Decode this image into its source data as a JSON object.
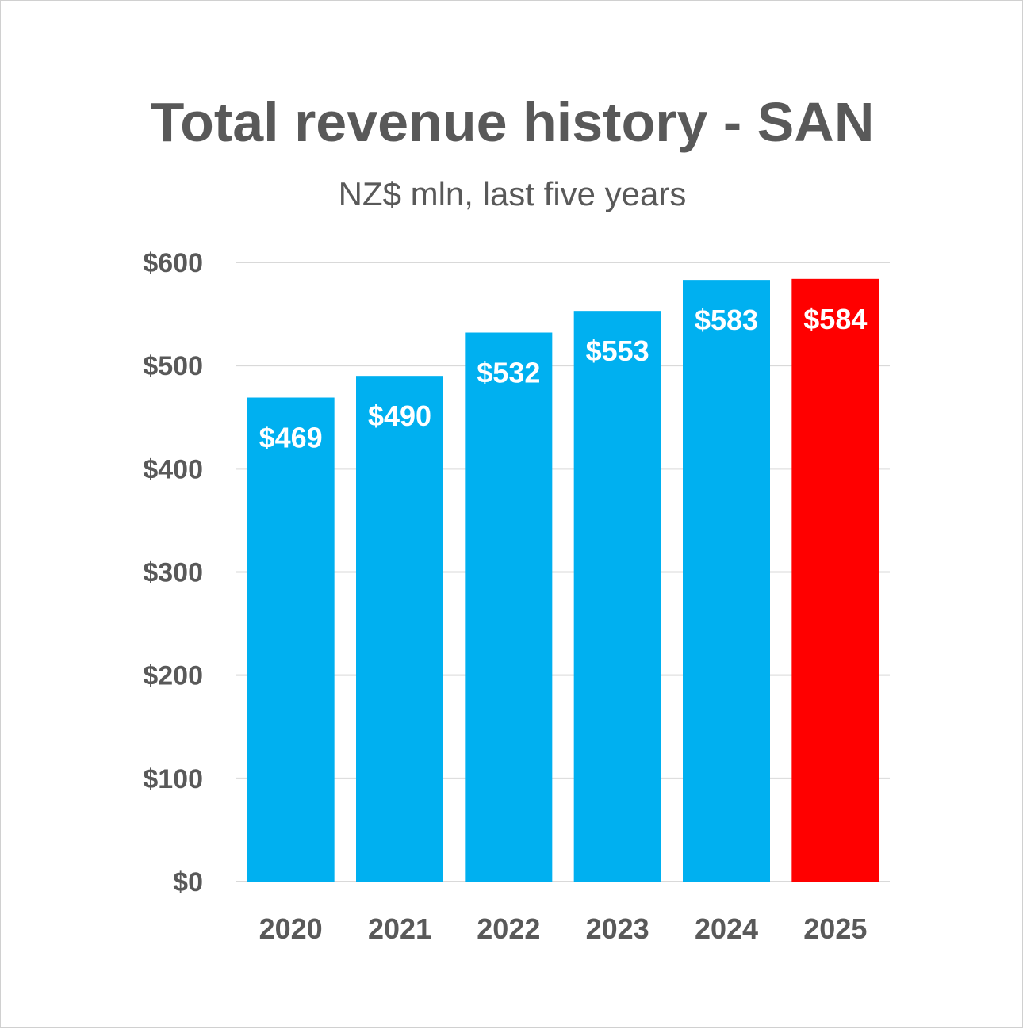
{
  "chart_data": {
    "type": "bar",
    "title": "Total revenue history - SAN",
    "subtitle": "NZ$ mln, last five years",
    "categories": [
      "2020",
      "2021",
      "2022",
      "2023",
      "2024",
      "2025"
    ],
    "values": [
      469,
      490,
      532,
      553,
      583,
      584
    ],
    "data_labels": [
      "$469",
      "$490",
      "$532",
      "$553",
      "$583",
      "$584"
    ],
    "bar_colors": [
      "#00b0f0",
      "#00b0f0",
      "#00b0f0",
      "#00b0f0",
      "#00b0f0",
      "#ff0000"
    ],
    "ylim": [
      0,
      600
    ],
    "y_ticks": [
      0,
      100,
      200,
      300,
      400,
      500,
      600
    ],
    "y_tick_labels": [
      "$0",
      "$100",
      "$200",
      "$300",
      "$400",
      "$500",
      "$600"
    ],
    "xlabel": "",
    "ylabel": "",
    "grid": true,
    "grid_color": "#d9d9d9",
    "legend": "none"
  }
}
